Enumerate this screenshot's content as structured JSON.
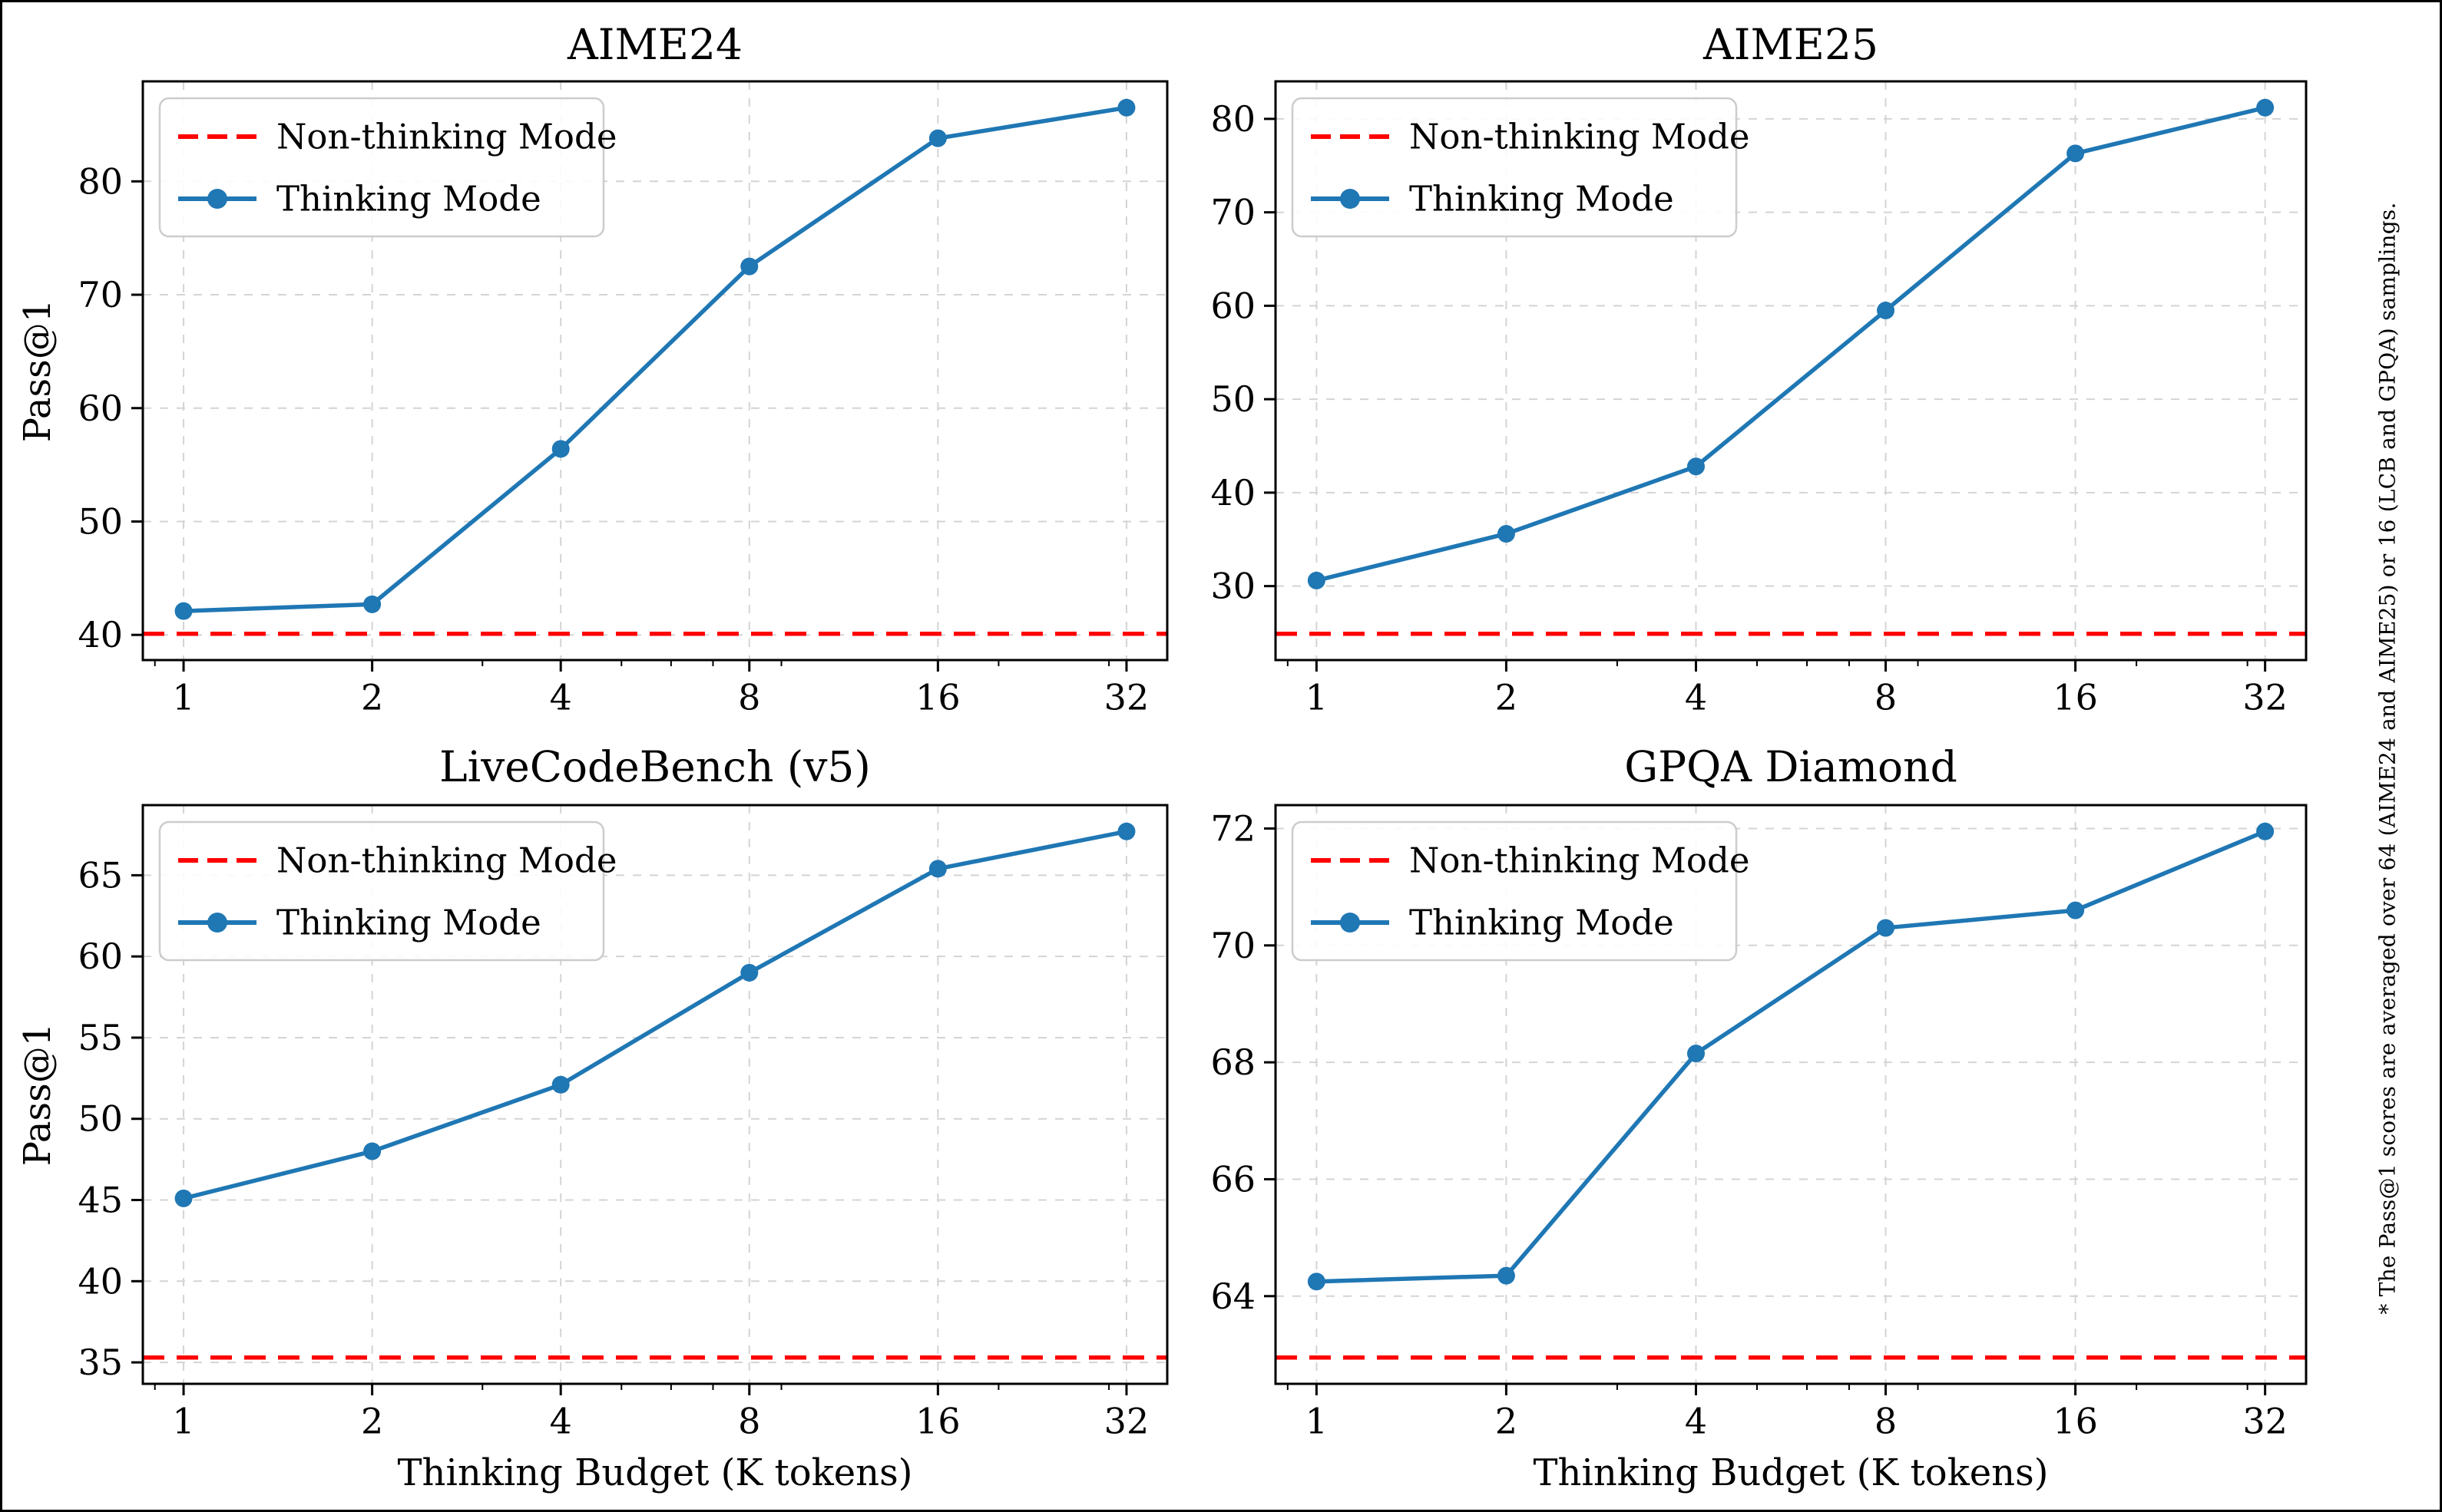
{
  "footnote": "* The Pass@1 scores are averaged over 64 (AIME24 and AIME25) or 16 (LCB and GPQA) samplings.",
  "legend": {
    "position": "upper left",
    "entries": [
      {
        "label": "Non-thinking Mode",
        "style": "red-dashed-line"
      },
      {
        "label": "Thinking Mode",
        "style": "blue-line-circle-marker"
      }
    ]
  },
  "axis": {
    "xlabel": "Thinking Budget (K tokens)",
    "ylabel": "Pass@1"
  },
  "colors": {
    "thinking_line": "#1f77b4",
    "non_thinking_line": "#ff0000",
    "grid": "#d4d4d4",
    "legend_border": "#cccccc",
    "spine": "#000000"
  },
  "chart_data": [
    {
      "type": "line",
      "title": "AIME24",
      "xscale": "log2",
      "x": [
        1,
        2,
        4,
        8,
        16,
        32
      ],
      "xtick_labels": [
        "1",
        "2",
        "4",
        "8",
        "16",
        "32"
      ],
      "x_minor_ticks": [
        0.9,
        3,
        5,
        6,
        7,
        9,
        20,
        30
      ],
      "series": [
        {
          "name": "Thinking Mode",
          "values": [
            42.1,
            42.7,
            56.4,
            72.5,
            83.8,
            86.5
          ]
        }
      ],
      "baseline": {
        "name": "Non-thinking Mode",
        "value": 40.1
      },
      "yticks": [
        40,
        50,
        60,
        70,
        80
      ],
      "ylabel": "Pass@1",
      "xlabel": "",
      "grid": true,
      "legend_position": "upper left"
    },
    {
      "type": "line",
      "title": "AIME25",
      "xscale": "log2",
      "x": [
        1,
        2,
        4,
        8,
        16,
        32
      ],
      "xtick_labels": [
        "1",
        "2",
        "4",
        "8",
        "16",
        "32"
      ],
      "x_minor_ticks": [
        0.9,
        3,
        5,
        6,
        7,
        9,
        20,
        30
      ],
      "series": [
        {
          "name": "Thinking Mode",
          "values": [
            30.6,
            35.6,
            42.8,
            59.5,
            76.3,
            81.2
          ]
        }
      ],
      "baseline": {
        "name": "Non-thinking Mode",
        "value": 24.9
      },
      "yticks": [
        30,
        40,
        50,
        60,
        70,
        80
      ],
      "ylabel": "",
      "xlabel": "",
      "grid": true,
      "legend_position": "upper left"
    },
    {
      "type": "line",
      "title": "LiveCodeBench (v5)",
      "xscale": "log2",
      "x": [
        1,
        2,
        4,
        8,
        16,
        32
      ],
      "xtick_labels": [
        "1",
        "2",
        "4",
        "8",
        "16",
        "32"
      ],
      "x_minor_ticks": [
        0.9,
        3,
        5,
        6,
        7,
        9,
        20,
        30
      ],
      "series": [
        {
          "name": "Thinking Mode",
          "values": [
            45.1,
            48.0,
            52.1,
            59.0,
            65.4,
            67.7
          ]
        }
      ],
      "baseline": {
        "name": "Non-thinking Mode",
        "value": 35.3
      },
      "yticks": [
        35,
        40,
        45,
        50,
        55,
        60,
        65
      ],
      "ylabel": "Pass@1",
      "xlabel": "Thinking Budget (K tokens)",
      "grid": true,
      "legend_position": "upper left"
    },
    {
      "type": "line",
      "title": "GPQA Diamond",
      "xscale": "log2",
      "x": [
        1,
        2,
        4,
        8,
        16,
        32
      ],
      "xtick_labels": [
        "1",
        "2",
        "4",
        "8",
        "16",
        "32"
      ],
      "x_minor_ticks": [
        0.9,
        3,
        5,
        6,
        7,
        9,
        20,
        30
      ],
      "series": [
        {
          "name": "Thinking Mode",
          "values": [
            64.25,
            64.35,
            68.15,
            70.3,
            70.6,
            71.95
          ]
        }
      ],
      "baseline": {
        "name": "Non-thinking Mode",
        "value": 62.95
      },
      "yticks": [
        64,
        66,
        68,
        70,
        72
      ],
      "ylabel": "",
      "xlabel": "Thinking Budget (K tokens)",
      "grid": true,
      "legend_position": "upper left"
    }
  ]
}
